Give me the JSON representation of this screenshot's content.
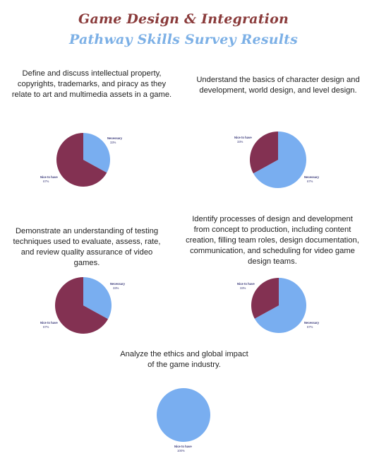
{
  "header": {
    "title": "Game Design & Integration",
    "subtitle": "Pathway Skills Survey Results"
  },
  "colors": {
    "title": "#8a3b3b",
    "subtitle": "#7cb0e6",
    "necessary": "#79aef0",
    "nice_to_have": "#833152",
    "label_text": "#3a3a7a"
  },
  "questions": [
    "Define and discuss intellectual property, copyrights, trademarks, and piracy as they relate to art and multimedia assets in a game.",
    "Understand the basics of character design and development, world design, and level design.",
    "Demonstrate an understanding of testing techniques used to evaluate, assess, rate, and review quality assurance of video games.",
    "Identify processes of design and development from concept to production, including content creation, filling team roles, design documentation, communication, and scheduling for video game design teams.",
    "Analyze the ethics and global impact of the game industry."
  ],
  "chart_data": [
    {
      "type": "pie",
      "slices": [
        {
          "label": "Necessary",
          "value": 33,
          "value_label": "33%",
          "color": "#79aef0"
        },
        {
          "label": "Nice to have",
          "value": 67,
          "value_label": "67%",
          "color": "#833152"
        }
      ]
    },
    {
      "type": "pie",
      "slices": [
        {
          "label": "Necessary",
          "value": 67,
          "value_label": "67%",
          "color": "#79aef0"
        },
        {
          "label": "Nice to have",
          "value": 33,
          "value_label": "33%",
          "color": "#833152"
        }
      ]
    },
    {
      "type": "pie",
      "slices": [
        {
          "label": "Necessary",
          "value": 33,
          "value_label": "33%",
          "color": "#79aef0"
        },
        {
          "label": "Nice to have",
          "value": 67,
          "value_label": "67%",
          "color": "#833152"
        }
      ]
    },
    {
      "type": "pie",
      "slices": [
        {
          "label": "Necessary",
          "value": 67,
          "value_label": "67%",
          "color": "#79aef0"
        },
        {
          "label": "Nice to have",
          "value": 33,
          "value_label": "33%",
          "color": "#833152"
        }
      ]
    },
    {
      "type": "pie",
      "slices": [
        {
          "label": "Nice to have",
          "value": 100,
          "value_label": "100%",
          "color": "#79aef0"
        }
      ]
    }
  ]
}
